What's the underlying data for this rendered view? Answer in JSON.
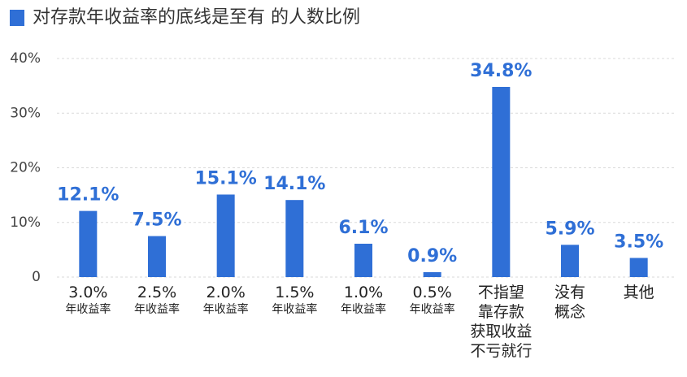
{
  "chart_data": {
    "type": "bar",
    "title": "对存款年收益率的底线是至有 的人数比例",
    "categories": [
      "3.0%\n年收益率",
      "2.5%\n年收益率",
      "2.0%\n年收益率",
      "1.5%\n年收益率",
      "1.0%\n年收益率",
      "0.5%\n年收益率",
      "不指望\n靠存款\n获取收益\n不亏就行",
      "没有\n概念",
      "其他"
    ],
    "values": [
      12.1,
      7.5,
      15.1,
      14.1,
      6.1,
      0.9,
      34.8,
      5.9,
      3.5
    ],
    "value_labels": [
      "12.1%",
      "7.5%",
      "15.1%",
      "14.1%",
      "6.1%",
      "0.9%",
      "34.8%",
      "5.9%",
      "3.5%"
    ],
    "color": "#2f6fd6",
    "ylim": [
      0,
      40
    ],
    "yticks": [
      {
        "value": 0,
        "label": "0"
      },
      {
        "value": 10,
        "label": "10%"
      },
      {
        "value": 20,
        "label": "20%"
      },
      {
        "value": 30,
        "label": "30%"
      },
      {
        "value": 40,
        "label": "40%"
      }
    ],
    "grid": true
  }
}
